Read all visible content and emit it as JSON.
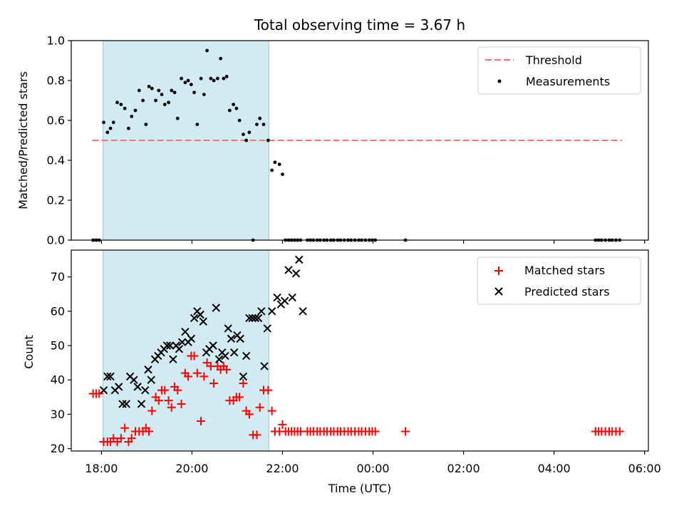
{
  "chart_data": [
    {
      "type": "scatter",
      "title": "Total observing time = 3.67 h",
      "xlabel": "",
      "ylabel": "Matched/Predicted stars",
      "xlim": [
        "17:20",
        "06:05"
      ],
      "ylim": [
        0.0,
        1.0
      ],
      "yticks": [
        "0.0",
        "0.2",
        "0.4",
        "0.6",
        "0.8",
        "1.0"
      ],
      "shaded_region": {
        "x_start": "18:02",
        "x_end": "21:42",
        "color": "#add8e6"
      },
      "threshold": {
        "name": "Threshold",
        "value": 0.5,
        "x_start": "17:48",
        "x_end": "05:30",
        "color": "#ff7070"
      },
      "legend": {
        "position": "top-right",
        "entries": [
          "Threshold",
          "Measurements"
        ]
      },
      "series": [
        {
          "name": "Measurements",
          "marker": "dot",
          "color": "#000000",
          "x": [
            "17:49",
            "17:53",
            "17:57",
            "18:03",
            "18:08",
            "18:12",
            "18:16",
            "18:21",
            "18:26",
            "18:31",
            "18:36",
            "18:40",
            "18:45",
            "18:50",
            "18:55",
            "18:59",
            "19:03",
            "19:07",
            "19:12",
            "19:16",
            "19:20",
            "19:24",
            "19:29",
            "19:33",
            "19:37",
            "19:41",
            "19:46",
            "19:51",
            "19:55",
            "19:59",
            "20:03",
            "20:07",
            "20:12",
            "20:16",
            "20:20",
            "20:25",
            "20:29",
            "20:34",
            "20:38",
            "20:42",
            "20:46",
            "20:50",
            "20:55",
            "20:59",
            "21:03",
            "21:08",
            "21:12",
            "21:16",
            "21:21",
            "21:26",
            "21:30",
            "21:35",
            "21:41",
            "21:46",
            "21:50",
            "21:56",
            "22:00",
            "22:04",
            "22:08",
            "22:12",
            "22:16",
            "22:20",
            "22:24",
            "22:33",
            "22:37",
            "22:41",
            "22:46",
            "22:50",
            "22:55",
            "22:59",
            "23:04",
            "23:08",
            "23:13",
            "23:17",
            "23:22",
            "23:27",
            "23:31",
            "23:36",
            "23:41",
            "23:45",
            "23:50",
            "23:55",
            "23:59",
            "00:03",
            "00:43",
            "04:55",
            "04:59",
            "05:03",
            "05:08",
            "05:13",
            "05:17",
            "05:22",
            "05:27"
          ],
          "y": [
            0.0,
            0.0,
            0.0,
            0.59,
            0.54,
            0.56,
            0.59,
            0.69,
            0.68,
            0.66,
            0.56,
            0.62,
            0.65,
            0.75,
            0.7,
            0.58,
            0.77,
            0.76,
            0.7,
            0.75,
            0.73,
            0.68,
            0.69,
            0.75,
            0.74,
            0.61,
            0.81,
            0.79,
            0.8,
            0.78,
            0.74,
            0.58,
            0.81,
            0.73,
            0.95,
            0.81,
            0.8,
            0.81,
            0.91,
            0.81,
            0.82,
            0.65,
            0.68,
            0.66,
            0.6,
            0.53,
            0.5,
            0.54,
            0.0,
            0.58,
            0.61,
            0.58,
            0.5,
            0.35,
            0.39,
            0.38,
            0.33,
            0.0,
            0.0,
            0.0,
            0.0,
            0.0,
            0.0,
            0.0,
            0.0,
            0.0,
            0.0,
            0.0,
            0.0,
            0.0,
            0.0,
            0.0,
            0.0,
            0.0,
            0.0,
            0.0,
            0.0,
            0.0,
            0.0,
            0.0,
            0.0,
            0.0,
            0.0,
            0.0,
            0.0,
            0.0,
            0.0,
            0.0,
            0.0,
            0.0,
            0.0,
            0.0,
            0.0
          ]
        }
      ]
    },
    {
      "type": "scatter",
      "title": "",
      "xlabel": "Time (UTC)",
      "ylabel": "Count",
      "xlim": [
        "17:20",
        "06:05"
      ],
      "ylim": [
        19.3,
        77.8
      ],
      "xticks": [
        "18:00",
        "20:00",
        "22:00",
        "00:00",
        "02:00",
        "04:00",
        "06:00"
      ],
      "yticks": [
        "20",
        "30",
        "40",
        "50",
        "60",
        "70"
      ],
      "shaded_region": {
        "x_start": "18:02",
        "x_end": "21:42",
        "color": "#add8e6"
      },
      "legend": {
        "position": "top-right",
        "entries": [
          "Matched stars",
          "Predicted stars"
        ]
      },
      "series": [
        {
          "name": "Matched stars",
          "marker": "plus",
          "color": "#ff0000",
          "x": [
            "17:49",
            "17:53",
            "17:57",
            "18:03",
            "18:08",
            "18:12",
            "18:16",
            "18:21",
            "18:26",
            "18:31",
            "18:36",
            "18:40",
            "18:45",
            "18:50",
            "18:55",
            "18:59",
            "19:03",
            "19:07",
            "19:12",
            "19:16",
            "19:20",
            "19:24",
            "19:29",
            "19:33",
            "19:37",
            "19:41",
            "19:46",
            "19:51",
            "19:55",
            "19:59",
            "20:03",
            "20:07",
            "20:12",
            "20:16",
            "20:20",
            "20:25",
            "20:29",
            "20:34",
            "20:38",
            "20:42",
            "20:46",
            "20:50",
            "20:55",
            "20:59",
            "21:03",
            "21:08",
            "21:12",
            "21:16",
            "21:21",
            "21:26",
            "21:30",
            "21:35",
            "21:41",
            "21:46",
            "21:50",
            "21:56",
            "22:00",
            "22:04",
            "22:08",
            "22:12",
            "22:16",
            "22:20",
            "22:24",
            "22:33",
            "22:37",
            "22:41",
            "22:46",
            "22:50",
            "22:55",
            "22:59",
            "23:04",
            "23:08",
            "23:13",
            "23:17",
            "23:22",
            "23:27",
            "23:31",
            "23:36",
            "23:41",
            "23:45",
            "23:50",
            "23:55",
            "23:59",
            "00:03",
            "00:43",
            "04:55",
            "04:59",
            "05:03",
            "05:08",
            "05:13",
            "05:17",
            "05:22",
            "05:27"
          ],
          "y": [
            36,
            36,
            36,
            22,
            22,
            22,
            23,
            22,
            23,
            26,
            22,
            23,
            25,
            25,
            25,
            26,
            25,
            31,
            35,
            34,
            37,
            37,
            34,
            32,
            38,
            37,
            33,
            42,
            41,
            47,
            47,
            42,
            28,
            41,
            45,
            44,
            39,
            44,
            43,
            44,
            43,
            34,
            34,
            35,
            35,
            39,
            31,
            30,
            24,
            24,
            32,
            37,
            37,
            31,
            25,
            25,
            27,
            25,
            25,
            25,
            25,
            25,
            25,
            25,
            25,
            25,
            25,
            25,
            25,
            25,
            25,
            25,
            25,
            25,
            25,
            25,
            25,
            25,
            25,
            25,
            25,
            25,
            25,
            25,
            25,
            25,
            25,
            25,
            25,
            25,
            25,
            25,
            25
          ]
        },
        {
          "name": "Predicted stars",
          "marker": "x",
          "color": "#000000",
          "x": [
            "18:03",
            "18:08",
            "18:12",
            "18:18",
            "18:23",
            "18:28",
            "18:33",
            "18:38",
            "18:43",
            "18:48",
            "18:53",
            "18:58",
            "19:02",
            "19:06",
            "19:11",
            "19:15",
            "19:19",
            "19:23",
            "19:27",
            "19:31",
            "19:35",
            "19:39",
            "19:43",
            "19:47",
            "19:51",
            "19:55",
            "19:59",
            "20:03",
            "20:07",
            "20:11",
            "20:15",
            "20:19",
            "20:23",
            "20:28",
            "20:32",
            "20:36",
            "20:40",
            "20:44",
            "20:48",
            "20:52",
            "20:56",
            "21:00",
            "21:04",
            "21:08",
            "21:12",
            "21:16",
            "21:20",
            "21:24",
            "21:28",
            "21:32",
            "21:36",
            "21:40",
            "21:46",
            "21:53",
            "21:58",
            "22:03",
            "22:08",
            "22:13",
            "22:18",
            "22:22",
            "22:27"
          ],
          "y": [
            37,
            41,
            41,
            37,
            38,
            33,
            33,
            41,
            40,
            38,
            33,
            37,
            43,
            40,
            46,
            47,
            48,
            49,
            50,
            50,
            46,
            50,
            49,
            51,
            54,
            51,
            52,
            58,
            60,
            59,
            57,
            48,
            49,
            50,
            61,
            46,
            48,
            47,
            55,
            52,
            48,
            53,
            52,
            41,
            47,
            58,
            58,
            58,
            58,
            60,
            44,
            55,
            60,
            64,
            62,
            63,
            72,
            64,
            71,
            75,
            60
          ]
        }
      ]
    }
  ]
}
